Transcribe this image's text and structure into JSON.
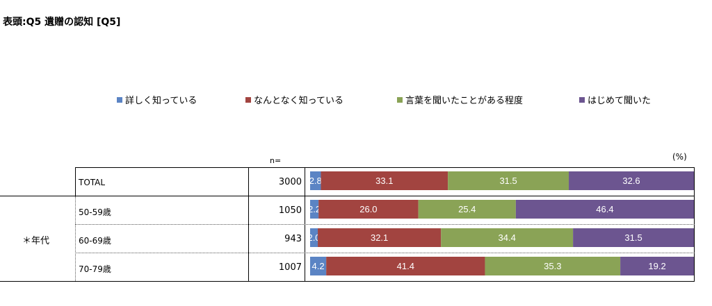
{
  "title": "表頭:Q5 遺贈の認知 [Q5]",
  "n_label": "n=",
  "percent_label": "(%)",
  "group_label": "＊年代",
  "colors": {
    "series1": "#5b84c4",
    "series2": "#a24440",
    "series3": "#8aa356",
    "series4": "#6c5590"
  },
  "chart_data": {
    "type": "bar",
    "orientation": "horizontal-stacked-100",
    "categories": [
      "TOTAL",
      "50-59歳",
      "60-69歳",
      "70-79歳"
    ],
    "n": [
      "3000",
      "1050",
      "943",
      "1007"
    ],
    "series": [
      {
        "name": "詳しく知っている",
        "values": [
          2.8,
          2.2,
          2.0,
          4.2
        ]
      },
      {
        "name": "なんとなく知っている",
        "values": [
          33.1,
          26.0,
          32.1,
          41.4
        ]
      },
      {
        "name": "言葉を聞いたことがある程度",
        "values": [
          31.5,
          25.4,
          34.4,
          35.3
        ]
      },
      {
        "name": "はじめて聞いた",
        "values": [
          32.6,
          46.4,
          31.5,
          19.2
        ]
      }
    ],
    "unit": "%",
    "xlim": [
      0,
      100
    ],
    "legend": "top"
  }
}
